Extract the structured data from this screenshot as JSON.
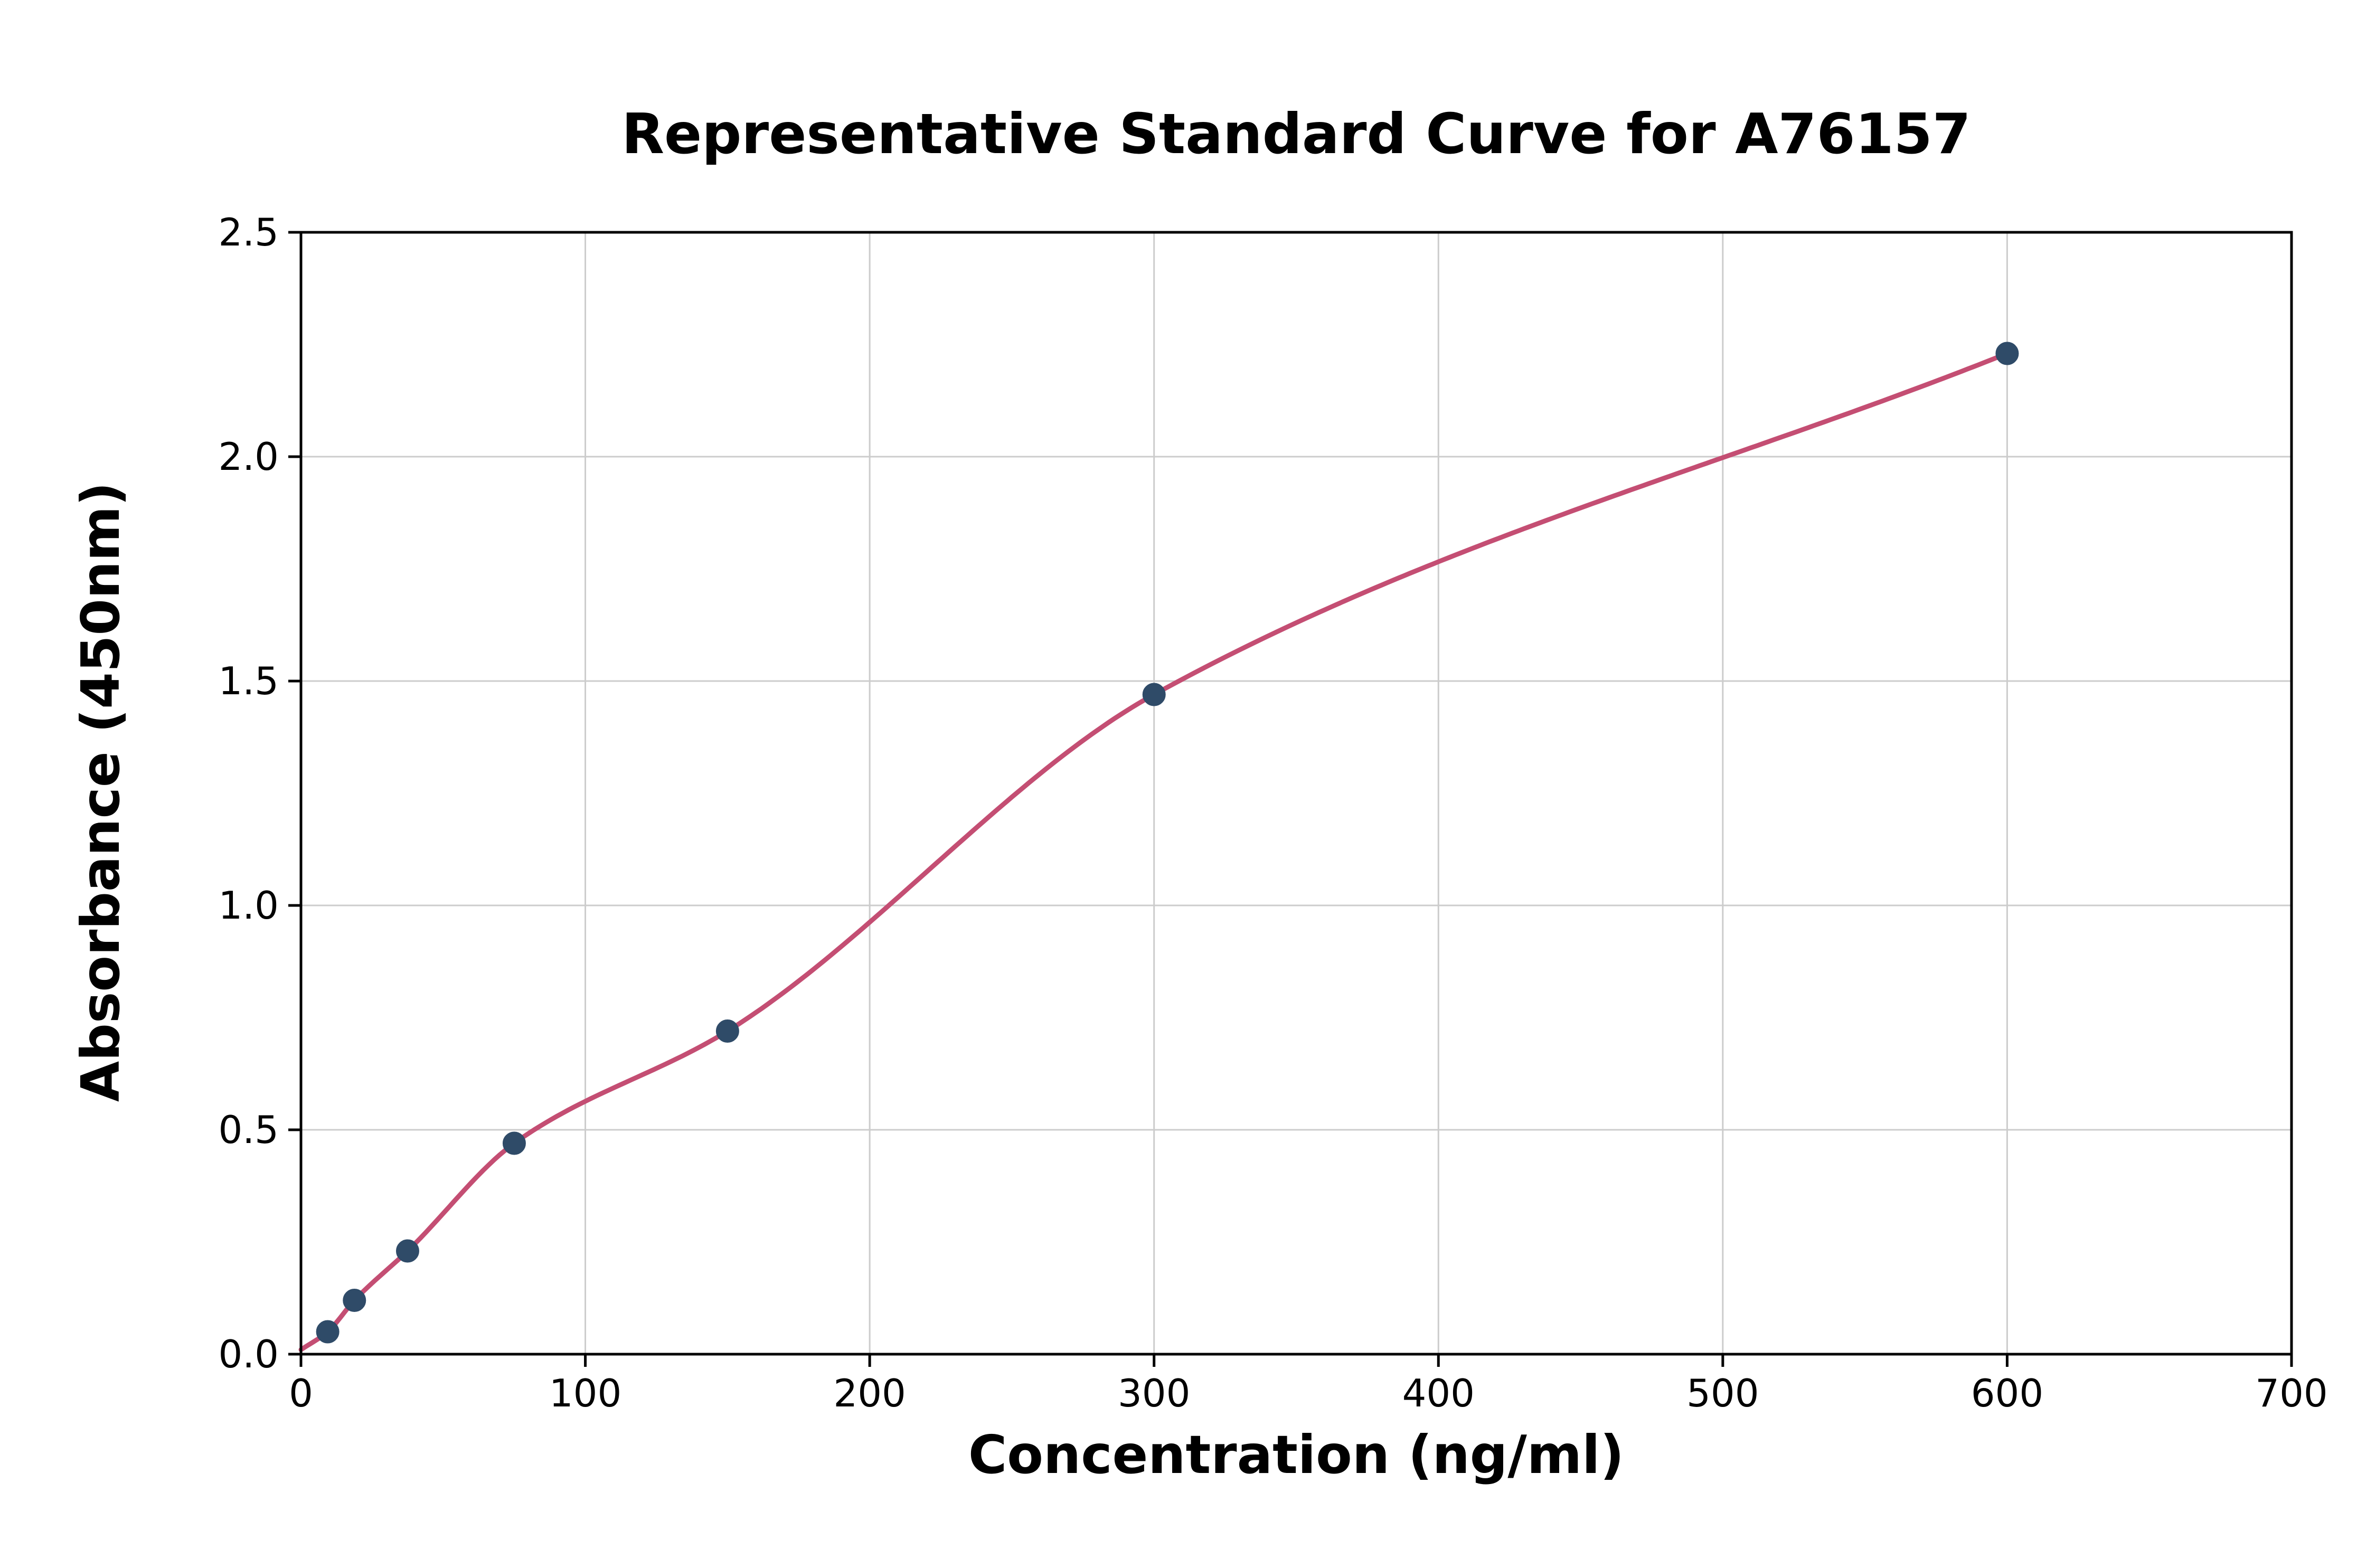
{
  "chart_data": {
    "type": "scatter",
    "title": "Representative Standard Curve for A76157",
    "xlabel": "Concentration (ng/ml)",
    "ylabel": "Absorbance (450nm)",
    "xlim": [
      0,
      700
    ],
    "ylim": [
      0,
      2.5
    ],
    "x_ticks": [
      0,
      100,
      200,
      300,
      400,
      500,
      600,
      700
    ],
    "x_tick_labels": [
      "0",
      "100",
      "200",
      "300",
      "400",
      "500",
      "600",
      "700"
    ],
    "y_ticks": [
      0,
      0.5,
      1.0,
      1.5,
      2.0,
      2.5
    ],
    "y_tick_labels": [
      "0.0",
      "0.5",
      "1.0",
      "1.5",
      "2.0",
      "2.5"
    ],
    "grid": true,
    "legend": "none",
    "series": [
      {
        "name": "standard-points",
        "type": "scatter",
        "x": [
          9.4,
          18.8,
          37.5,
          75,
          150,
          300,
          600
        ],
        "y": [
          0.05,
          0.12,
          0.23,
          0.47,
          0.72,
          1.47,
          2.23
        ]
      },
      {
        "name": "fitted-curve",
        "type": "line",
        "x_start": 0,
        "x_end": 600,
        "y_at_x_start": 0.01
      }
    ],
    "colors": {
      "points": "#2f4b68",
      "curve": "#c44e73",
      "grid": "#cccccc",
      "axis": "#000000",
      "background": "#ffffff"
    }
  }
}
